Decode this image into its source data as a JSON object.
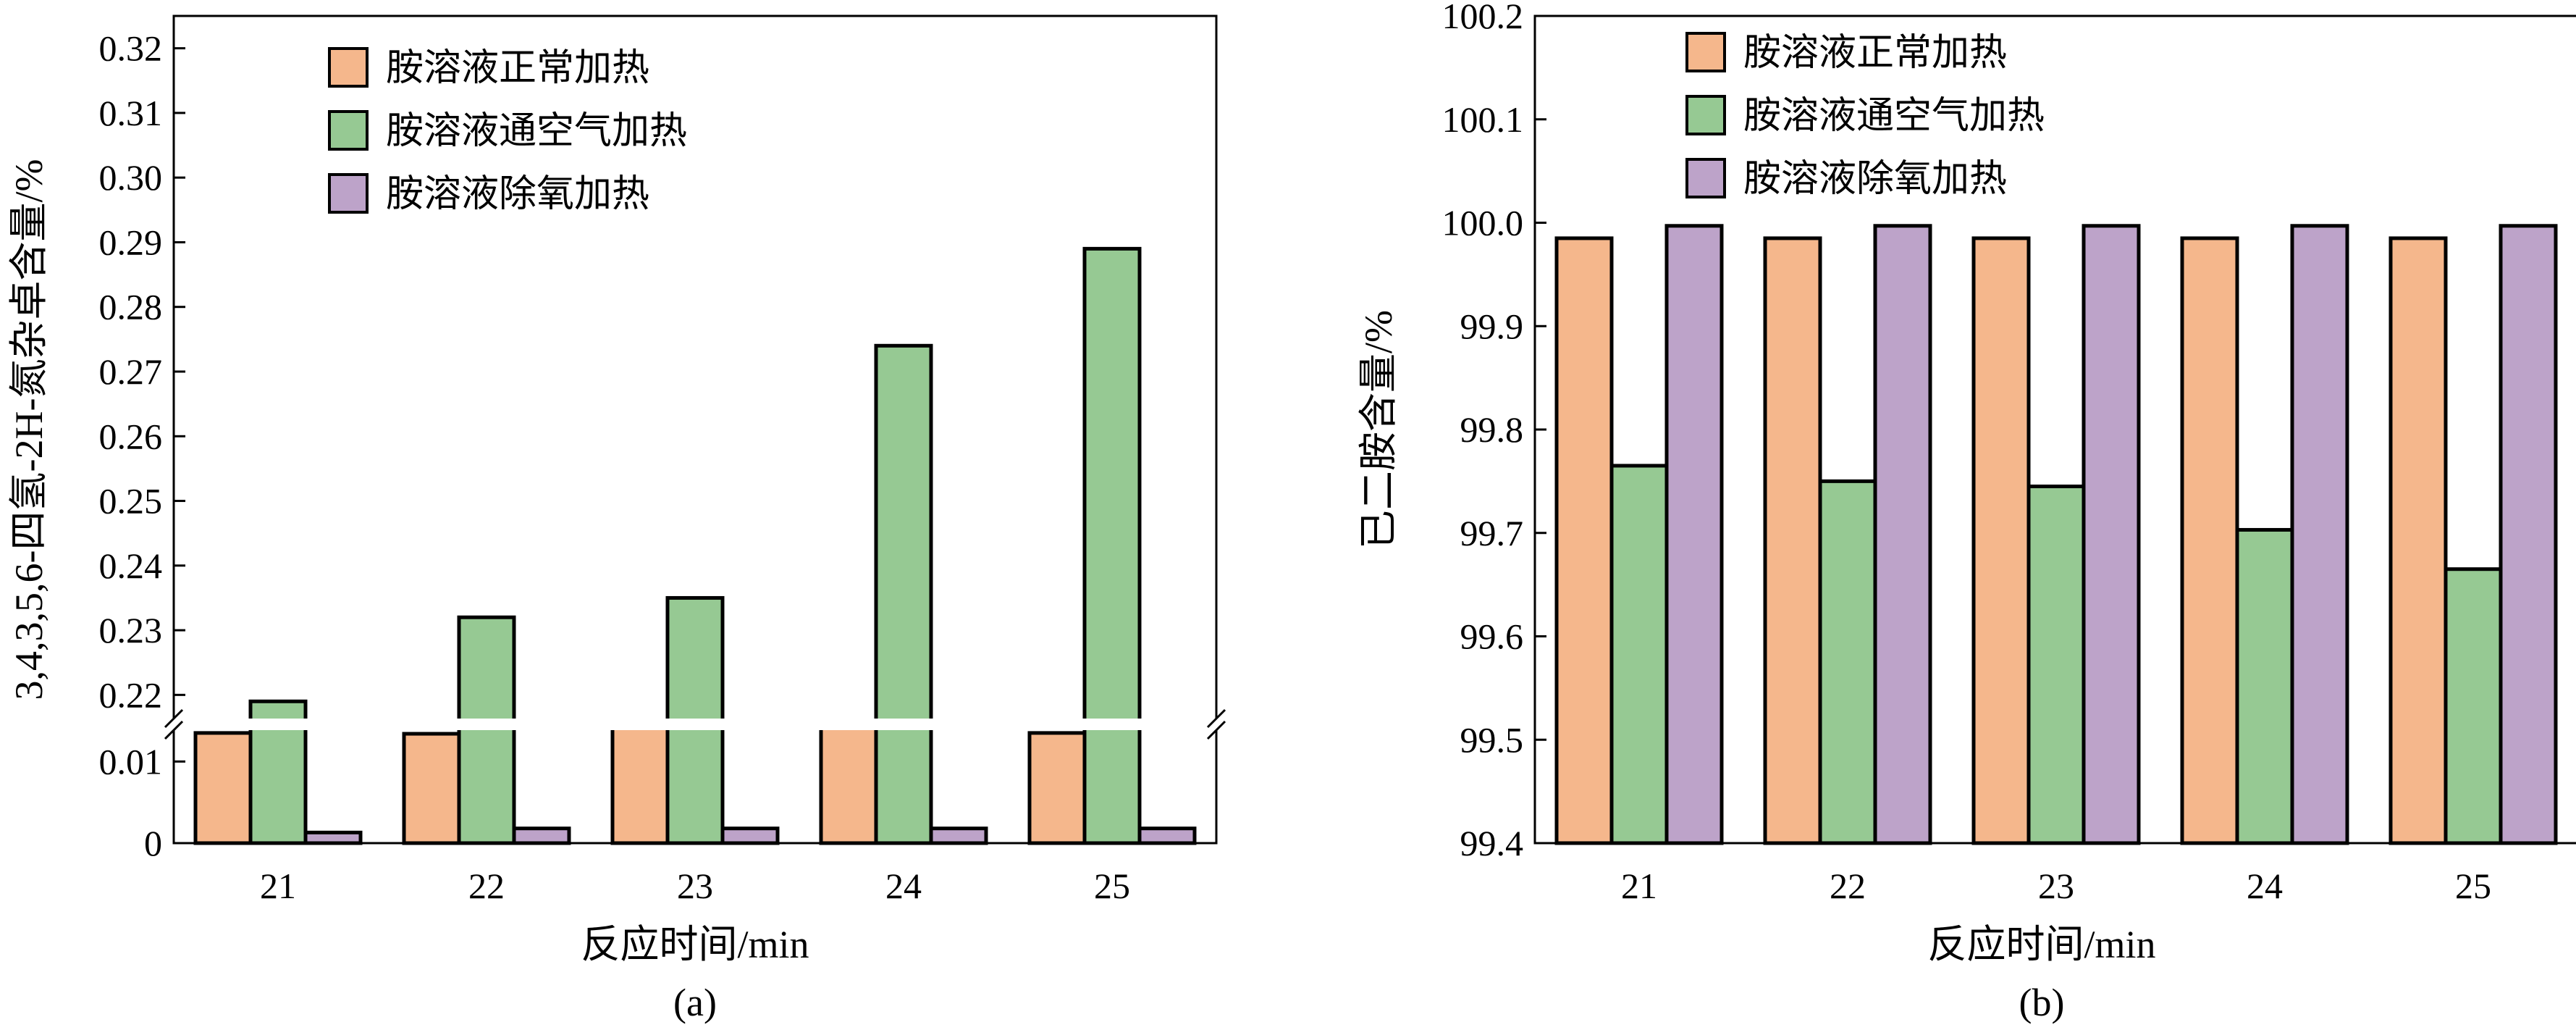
{
  "colors": {
    "series_1": "#f5b78c",
    "series_2": "#96c993",
    "series_3": "#bda3c9",
    "outline": "#000000",
    "background": "#ffffff"
  },
  "chart_data": [
    {
      "type": "bar",
      "caption": "(a)",
      "categories": [
        "21",
        "22",
        "23",
        "24",
        "25"
      ],
      "series": [
        {
          "name": "胺溶液正常加热",
          "values": [
            0.0135,
            0.0134,
            0.0147,
            0.0146,
            0.0135
          ]
        },
        {
          "name": "胺溶液通空气加热",
          "values": [
            0.219,
            0.232,
            0.235,
            0.274,
            0.289
          ]
        },
        {
          "name": "胺溶液除氧加热",
          "values": [
            0.0013,
            0.0018,
            0.0018,
            0.0018,
            0.0018
          ]
        }
      ],
      "xlabel": "反应时间/min",
      "ylabel": "3,4,3,5,6-四氢-2H-氮杂卓含量/%",
      "y_axis_break": {
        "lower_range": [
          0,
          0.015
        ],
        "upper_range": [
          0.215,
          0.325
        ]
      },
      "yticks_lower": [
        "0",
        "0.01"
      ],
      "yticks_upper": [
        "0.22",
        "0.23",
        "0.24",
        "0.25",
        "0.26",
        "0.27",
        "0.28",
        "0.29",
        "0.30",
        "0.31",
        "0.32"
      ],
      "legend_position": "top-center",
      "grid": false
    },
    {
      "type": "bar",
      "caption": "(b)",
      "categories": [
        "21",
        "22",
        "23",
        "24",
        "25"
      ],
      "series": [
        {
          "name": "胺溶液正常加热",
          "values": [
            99.985,
            99.985,
            99.985,
            99.985,
            99.985
          ]
        },
        {
          "name": "胺溶液通空气加热",
          "values": [
            99.765,
            99.75,
            99.745,
            99.703,
            99.665
          ]
        },
        {
          "name": "胺溶液除氧加热",
          "values": [
            99.997,
            99.997,
            99.997,
            99.997,
            99.997
          ]
        }
      ],
      "xlabel": "反应时间/min",
      "ylabel": "已二胺含量/%",
      "ylim": [
        99.4,
        100.2
      ],
      "yticks": [
        "99.4",
        "99.5",
        "99.6",
        "99.7",
        "99.8",
        "99.9",
        "100.0",
        "100.1",
        "100.2"
      ],
      "legend_position": "top-left",
      "grid": false
    }
  ]
}
